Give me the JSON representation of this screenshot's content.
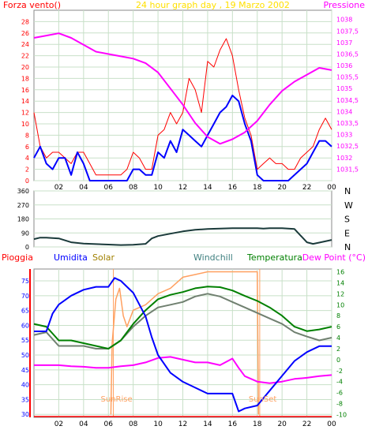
{
  "colors": {
    "wind": "#ff0000",
    "gust": "#0000ff",
    "pressure": "#ff00ff",
    "direction": "#1a3a3a",
    "rain": "#ff0000",
    "humidity": "#0000ff",
    "solar": "#ffa060",
    "windchill": "#708070",
    "temperature": "#008000",
    "dewpoint": "#ff00ff",
    "title": "#ffe000",
    "grid": "#c8e0c8"
  },
  "chart_data": [
    {
      "type": "line",
      "title": "24 hour graph day , 19 Marzo 2002",
      "left_label": "Forza vento()",
      "right_label": "Pressione",
      "x_ticks": [
        "02",
        "04",
        "06",
        "08",
        "10",
        "12",
        "14",
        "16",
        "18",
        "20",
        "22",
        "00"
      ],
      "y_left_ticks": [
        "0",
        "2",
        "4",
        "6",
        "8",
        "10",
        "12",
        "14",
        "16",
        "18",
        "20",
        "22",
        "24",
        "26",
        "28"
      ],
      "y_right_ticks": [
        "1031,5",
        "1032",
        "1032,5",
        "1033",
        "1033,5",
        "1034",
        "1034,5",
        "1035",
        "1035,5",
        "1036",
        "1036,5",
        "1037",
        "1037,5",
        "1038"
      ],
      "ylim_left": [
        0,
        30
      ],
      "ylim_right": [
        1031,
        1038.4
      ],
      "xlim": [
        0,
        24
      ],
      "series": [
        {
          "key": "wind",
          "x": [
            0,
            0.5,
            1,
            1.5,
            2,
            2.5,
            3,
            3.5,
            4,
            4.5,
            5,
            5.5,
            6,
            6.5,
            7,
            7.5,
            8,
            8.5,
            9,
            9.5,
            10,
            10.5,
            11,
            11.5,
            12,
            12.5,
            13,
            13.5,
            14,
            14.5,
            15,
            15.5,
            16,
            16.5,
            17,
            17.5,
            18,
            18.5,
            19,
            19.5,
            20,
            20.5,
            21,
            21.5,
            22,
            22.5,
            23,
            23.5,
            24
          ],
          "values": [
            12,
            6,
            4,
            5,
            5,
            4,
            3,
            5,
            5,
            3,
            1,
            1,
            1,
            1,
            1,
            2,
            5,
            4,
            2,
            2,
            8,
            9,
            12,
            10,
            12,
            18,
            16,
            12,
            21,
            20,
            23,
            25,
            22,
            16,
            11,
            8,
            2,
            3,
            4,
            3,
            3,
            2,
            2,
            4,
            5,
            6,
            9,
            11,
            9
          ]
        },
        {
          "key": "gust",
          "x": [
            0,
            0.5,
            1,
            1.5,
            2,
            2.5,
            3,
            3.5,
            4,
            4.5,
            5,
            5.5,
            6,
            6.5,
            7,
            7.5,
            8,
            8.5,
            9,
            9.5,
            10,
            10.5,
            11,
            11.5,
            12,
            12.5,
            13,
            13.5,
            14,
            14.5,
            15,
            15.5,
            16,
            16.5,
            17,
            17.5,
            18,
            18.5,
            19,
            19.5,
            20,
            20.5,
            21,
            21.5,
            22,
            22.5,
            23,
            23.5,
            24
          ],
          "values": [
            4,
            6,
            3,
            2,
            4,
            4,
            1,
            5,
            3,
            0,
            0,
            0,
            0,
            0,
            0,
            0,
            2,
            2,
            1,
            1,
            5,
            4,
            7,
            5,
            9,
            8,
            7,
            6,
            8,
            10,
            12,
            13,
            15,
            14,
            10,
            7,
            1,
            0,
            0,
            0,
            0,
            0,
            1,
            2,
            3,
            5,
            7,
            7,
            6
          ]
        },
        {
          "key": "pressure",
          "x": [
            0,
            1,
            2,
            3,
            4,
            5,
            6,
            7,
            8,
            9,
            10,
            11,
            12,
            13,
            14,
            15,
            16,
            17,
            18,
            19,
            20,
            21,
            22,
            23,
            24
          ],
          "values": [
            1037.2,
            1037.3,
            1037.4,
            1037.2,
            1036.9,
            1036.6,
            1036.5,
            1036.4,
            1036.3,
            1036.1,
            1035.7,
            1035.0,
            1034.3,
            1033.5,
            1032.9,
            1032.6,
            1032.8,
            1033.1,
            1033.6,
            1034.3,
            1034.9,
            1035.3,
            1035.6,
            1035.9,
            1035.8
          ]
        }
      ]
    },
    {
      "type": "line",
      "right_ticks": [
        "N",
        "E",
        "S",
        "W",
        "N"
      ],
      "y_ticks": [
        "0",
        "90",
        "180",
        "270",
        "360"
      ],
      "ylim": [
        0,
        360
      ],
      "xlim": [
        0,
        24
      ],
      "series": [
        {
          "key": "direction",
          "x": [
            0,
            0.5,
            1,
            2,
            3,
            4,
            5,
            6,
            7,
            8,
            9,
            9.5,
            10,
            11,
            12,
            13,
            14,
            15,
            16,
            17,
            18,
            18.5,
            19,
            20,
            21,
            22,
            22.5,
            23,
            24
          ],
          "values": [
            50,
            60,
            60,
            55,
            30,
            22,
            18,
            15,
            12,
            14,
            20,
            55,
            70,
            85,
            100,
            110,
            115,
            118,
            120,
            120,
            120,
            118,
            120,
            120,
            115,
            30,
            20,
            28,
            45
          ]
        }
      ]
    },
    {
      "type": "line",
      "legend": [
        "Pioggia",
        "Umidita",
        "Solar",
        "Windchill",
        "Temperatura",
        "Dew Point (°C)"
      ],
      "x_ticks": [
        "02",
        "04",
        "06",
        "08",
        "10",
        "12",
        "14",
        "16",
        "18",
        "20",
        "22",
        "00"
      ],
      "y_left_ticks": [
        "30",
        "35",
        "40",
        "45",
        "50",
        "55",
        "60",
        "65",
        "70",
        "75"
      ],
      "y_right_ticks": [
        "-10",
        "-8",
        "-6",
        "-4",
        "-2",
        "0",
        "2",
        "4",
        "6",
        "8",
        "10",
        "12",
        "14",
        "16"
      ],
      "ylim_left": [
        29,
        79
      ],
      "ylim_right": [
        -10.5,
        16.5
      ],
      "xlim": [
        0,
        24
      ],
      "annotations": [
        "SunRise",
        "SunSet"
      ],
      "sunrise": 6.4,
      "sunset": 18.2,
      "series": [
        {
          "key": "humidity",
          "x": [
            0,
            1,
            1.5,
            2,
            3,
            4,
            5,
            6,
            6.5,
            7,
            8,
            9,
            9.5,
            10,
            11,
            12,
            13,
            14,
            15,
            16,
            16.5,
            17,
            18,
            19,
            20,
            21,
            22,
            23,
            24
          ],
          "values": [
            58,
            58,
            64,
            67,
            70,
            72,
            73,
            73,
            76,
            75,
            71,
            63,
            56,
            50,
            44,
            41,
            39,
            37,
            37,
            37,
            31,
            32,
            33,
            38,
            43,
            48,
            51,
            53,
            53
          ]
        },
        {
          "key": "solar",
          "x": [
            6.2,
            6.3,
            6.6,
            6.9,
            7.2,
            7.5,
            8,
            9,
            10,
            11,
            12,
            13,
            14,
            15,
            16,
            17,
            18,
            18.1
          ],
          "values": [
            -10,
            3,
            11,
            13,
            8,
            6,
            9,
            10,
            12,
            13,
            15,
            15.5,
            16,
            16,
            16,
            16,
            16,
            -10
          ]
        },
        {
          "key": "temperature",
          "x": [
            0,
            1,
            2,
            3,
            4,
            5,
            6,
            7,
            8,
            9,
            10,
            11,
            12,
            13,
            14,
            15,
            16,
            17,
            18,
            19,
            20,
            21,
            22,
            23,
            24
          ],
          "values": [
            6.5,
            6,
            3.5,
            3.5,
            3,
            2.5,
            2,
            3.5,
            6.5,
            9,
            11,
            11.8,
            12.3,
            13,
            13.3,
            13.2,
            12.6,
            11.6,
            10.7,
            9.5,
            8,
            6,
            5.2,
            5.5,
            6
          ]
        },
        {
          "key": "windchill",
          "x": [
            0,
            1,
            2,
            3,
            4,
            5,
            6,
            7,
            8,
            9,
            10,
            11,
            12,
            13,
            14,
            15,
            16,
            17,
            18,
            19,
            20,
            21,
            22,
            23,
            24
          ],
          "values": [
            4.5,
            5,
            2.5,
            2.5,
            2.5,
            2,
            2,
            3.5,
            6,
            8,
            9.5,
            10,
            10.5,
            11.5,
            12,
            11.5,
            10.5,
            9.5,
            8.5,
            7.5,
            6.5,
            5,
            4.2,
            3.5,
            4
          ]
        },
        {
          "key": "dewpoint",
          "x": [
            0,
            1,
            2,
            3,
            4,
            5,
            6,
            7,
            8,
            9,
            10,
            11,
            12,
            13,
            14,
            15,
            16,
            16.5,
            17,
            18,
            19,
            20,
            21,
            22,
            23,
            24
          ],
          "values": [
            -1,
            -1,
            -1,
            -1.2,
            -1.3,
            -1.5,
            -1.5,
            -1.2,
            -1,
            -0.5,
            0.3,
            0.5,
            0,
            -0.5,
            -0.5,
            -1,
            0.2,
            -1.5,
            -3,
            -4,
            -4.3,
            -4,
            -3.5,
            -3.3,
            -3,
            -2.8
          ]
        }
      ]
    }
  ]
}
